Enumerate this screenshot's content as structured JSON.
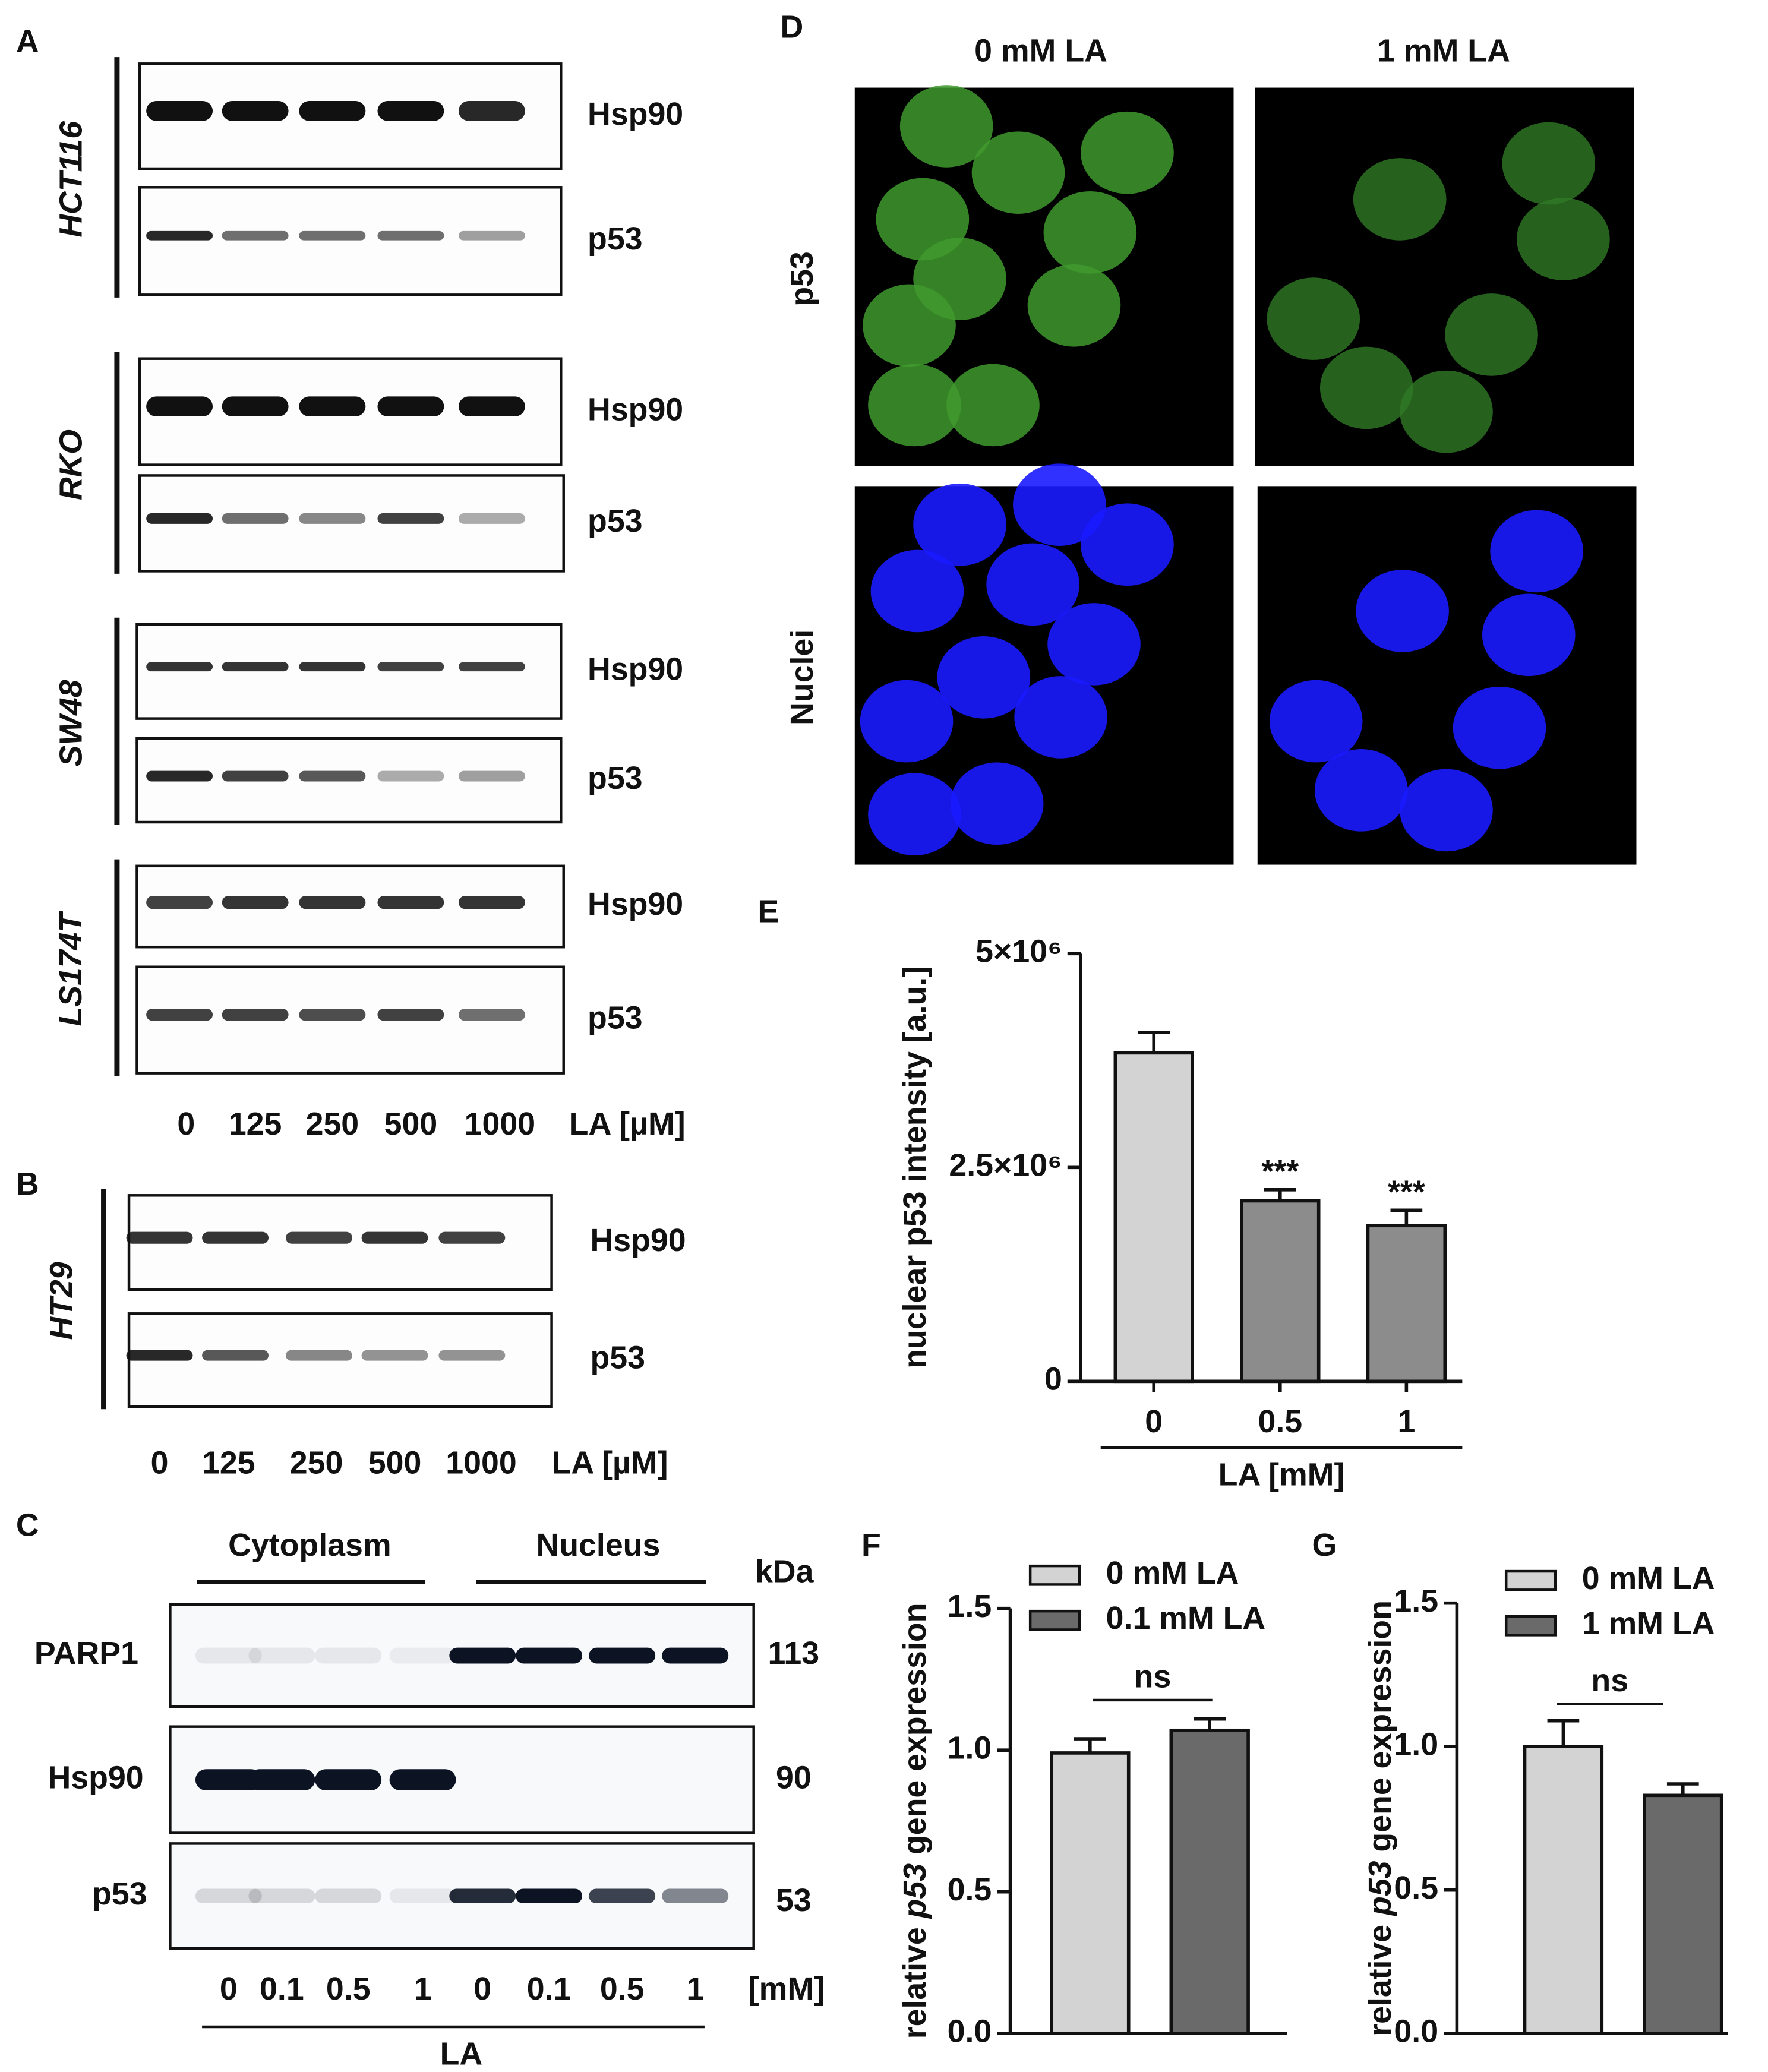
{
  "panel_a": {
    "label": "A",
    "blots": [
      {
        "cell_line": "HCT116",
        "proteins": [
          "Hsp90",
          "p53"
        ]
      },
      {
        "cell_line": "RKO",
        "proteins": [
          "Hsp90",
          "p53"
        ]
      },
      {
        "cell_line": "SW48",
        "proteins": [
          "Hsp90",
          "p53"
        ]
      },
      {
        "cell_line": "LS174T",
        "proteins": [
          "Hsp90",
          "p53"
        ]
      }
    ],
    "doses": [
      "0",
      "125",
      "250",
      "500",
      "1000"
    ],
    "dose_unit": "LA [µM]"
  },
  "panel_b": {
    "label": "B",
    "blots": [
      {
        "cell_line": "HT29",
        "proteins": [
          "Hsp90",
          "p53"
        ]
      }
    ],
    "doses": [
      "0",
      "125",
      "250",
      "500",
      "1000"
    ],
    "dose_unit": "LA [µM]"
  },
  "panel_c": {
    "label": "C",
    "fractions": [
      "Cytoplasm",
      "Nucleus"
    ],
    "mw_header": "kDa",
    "proteins": [
      {
        "name": "PARP1",
        "mw": "113"
      },
      {
        "name": "Hsp90",
        "mw": "90"
      },
      {
        "name": "p53",
        "mw": "53"
      }
    ],
    "lanes": [
      "0",
      "0.1",
      "0.5",
      "1",
      "0",
      "0.1",
      "0.5",
      "1"
    ],
    "unit": "[mM]",
    "treatment": "LA"
  },
  "panel_d": {
    "label": "D",
    "columns": [
      "0 mM LA",
      "1 mM LA"
    ],
    "rows": [
      "p53",
      "Nuclei"
    ]
  },
  "chart_data": [
    {
      "type": "bar",
      "panel_label": "E",
      "y_label": "nuclear p53 intensity [a.u.]",
      "x_label": "LA [mM]",
      "categories": [
        "0",
        "0.5",
        "1"
      ],
      "values": [
        3840000,
        2110000,
        1820000
      ],
      "errors": [
        240000,
        130000,
        180000
      ],
      "colors": [
        "#d3d3d3",
        "#8c8c8c",
        "#8c8c8c"
      ],
      "significance": [
        null,
        "***",
        "***"
      ],
      "ylim": [
        0,
        5000000
      ],
      "yticks": [
        0,
        {
          "value": 2500000,
          "label": "2.5×10⁶"
        },
        {
          "value": 5000000,
          "label": "5×10⁶"
        }
      ]
    },
    {
      "type": "bar",
      "panel_label": "F",
      "y_label": [
        "relative ",
        "p53",
        " gene expression"
      ],
      "series": [
        {
          "name": "0  mM LA",
          "color": "#d3d3d3",
          "values": [
            0.99
          ],
          "errors": [
            0.05
          ]
        },
        {
          "name": "0.1 mM LA",
          "color": "#6a6a6a",
          "values": [
            1.07
          ],
          "errors": [
            0.04
          ]
        }
      ],
      "annotation": "ns",
      "legend": "top",
      "ylim": [
        0,
        1.5
      ],
      "yticks": [
        {
          "value": 0,
          "label": "0.0"
        },
        0.5,
        {
          "value": 1,
          "label": "1.0"
        },
        1.5
      ]
    },
    {
      "type": "bar",
      "panel_label": "G",
      "y_label": [
        "relative ",
        "p53",
        " gene expression"
      ],
      "series": [
        {
          "name": "0 mM LA",
          "color": "#d3d3d3",
          "values": [
            1.0
          ],
          "errors": [
            0.09
          ]
        },
        {
          "name": "1 mM LA",
          "color": "#6a6a6a",
          "values": [
            0.83
          ],
          "errors": [
            0.04
          ]
        }
      ],
      "annotation": "ns",
      "legend": "top",
      "ylim": [
        0,
        1.5
      ],
      "yticks": [
        {
          "value": 0,
          "label": "0.0"
        },
        0.5,
        {
          "value": 1,
          "label": "1.0"
        },
        1.5
      ]
    }
  ]
}
